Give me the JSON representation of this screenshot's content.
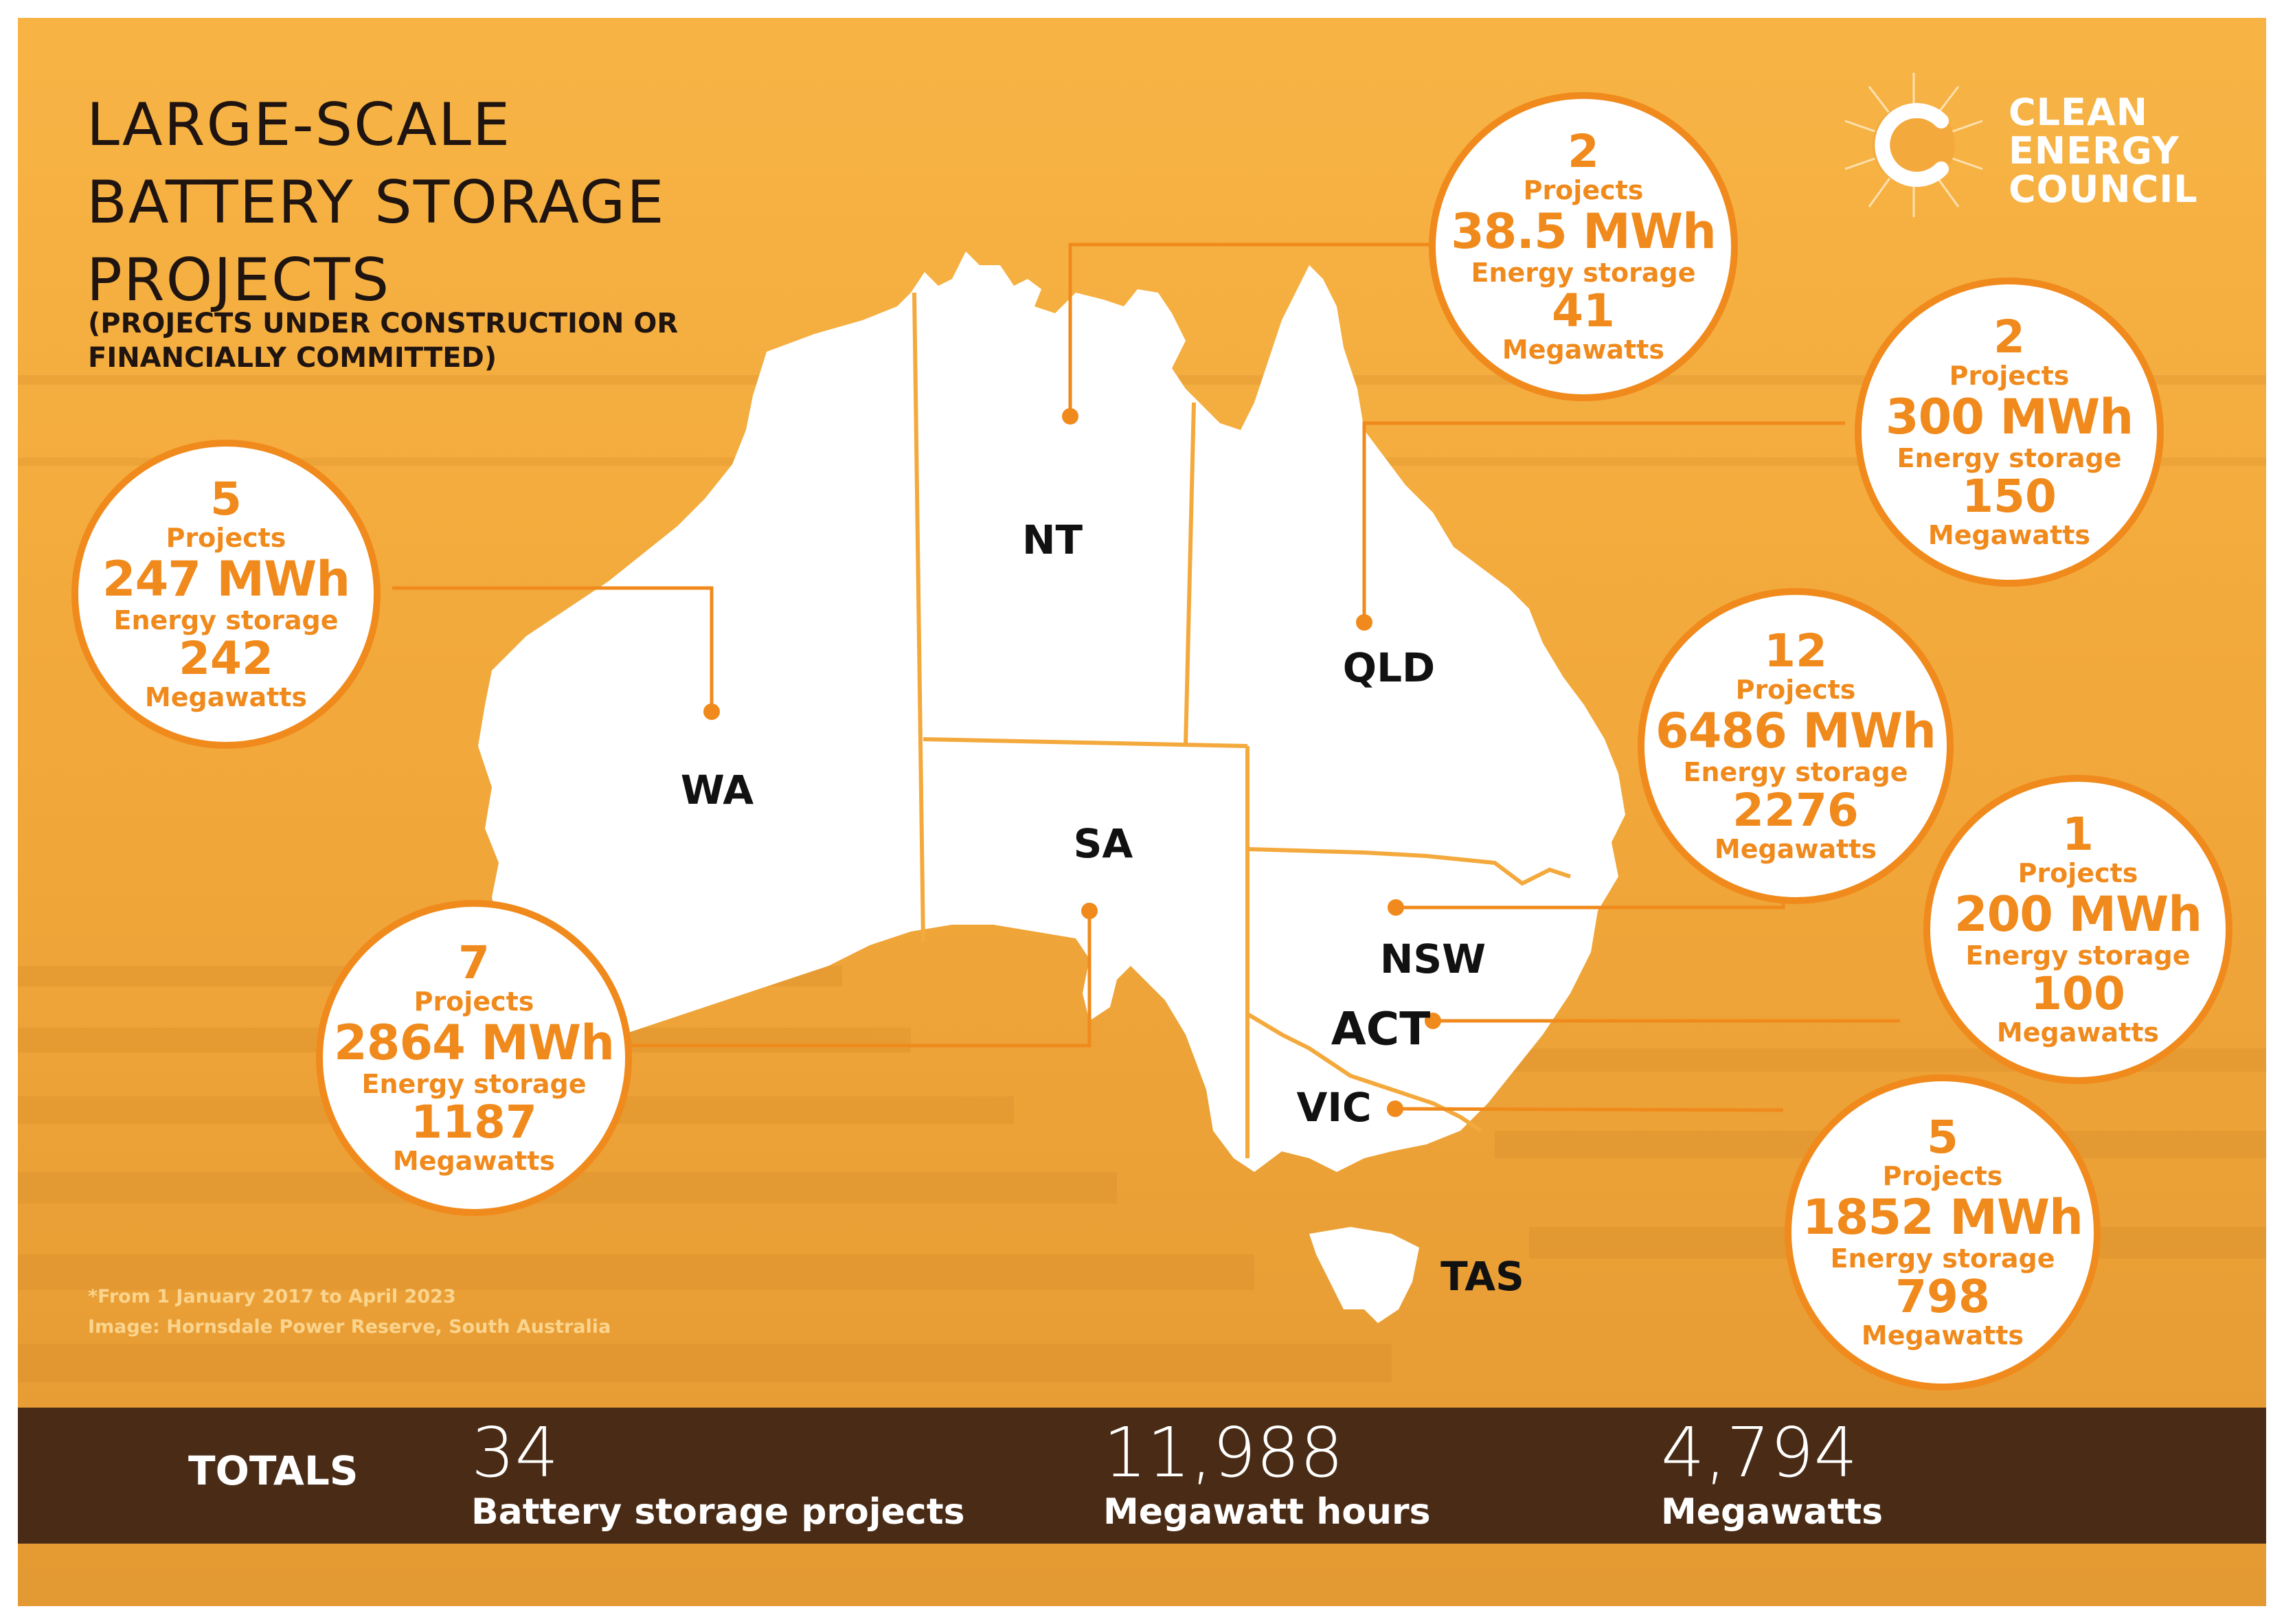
{
  "title_lines": [
    "LARGE-SCALE",
    "BATTERY STORAGE",
    "PROJECTS"
  ],
  "subtitle_lines": [
    "(PROJECTS UNDER CONSTRUCTION OR",
    "FINANCIALLY COMMITTED)"
  ],
  "logo_lines": [
    "CLEAN",
    "ENERGY",
    "COUNCIL"
  ],
  "states": {
    "wa": "WA",
    "nt": "NT",
    "sa": "SA",
    "qld": "QLD",
    "nsw": "NSW",
    "act": "ACT",
    "vic": "VIC",
    "tas": "TAS"
  },
  "bubbles": {
    "wa": {
      "projects": "5",
      "projects_label": "Projects",
      "energy": "247 MWh",
      "energy_label": "Energy storage",
      "power": "242",
      "power_label": "Megawatts"
    },
    "sa": {
      "projects": "7",
      "projects_label": "Projects",
      "energy": "2864 MWh",
      "energy_label": "Energy storage",
      "power": "1187",
      "power_label": "Megawatts"
    },
    "nt": {
      "projects": "2",
      "projects_label": "Projects",
      "energy": "38.5 MWh",
      "energy_label": "Energy storage",
      "power": "41",
      "power_label": "Megawatts"
    },
    "qld": {
      "projects": "2",
      "projects_label": "Projects",
      "energy": "300 MWh",
      "energy_label": "Energy storage",
      "power": "150",
      "power_label": "Megawatts"
    },
    "nsw": {
      "projects": "12",
      "projects_label": "Projects",
      "energy": "6486 MWh",
      "energy_label": "Energy storage",
      "power": "2276",
      "power_label": "Megawatts"
    },
    "act": {
      "projects": "1",
      "projects_label": "Projects",
      "energy": "200 MWh",
      "energy_label": "Energy storage",
      "power": "100",
      "power_label": "Megawatts"
    },
    "vic": {
      "projects": "5",
      "projects_label": "Projects",
      "energy": "1852 MWh",
      "energy_label": "Energy storage",
      "power": "798",
      "power_label": "Megawatts"
    }
  },
  "footnote_lines": [
    "*From 1 January 2017 to April 2023",
    "Image: Hornsdale Power Reserve, South Australia"
  ],
  "totals": {
    "label": "TOTALS",
    "projects": {
      "value": "34",
      "caption": "Battery storage projects"
    },
    "mwh": {
      "value": "11,988",
      "caption": "Megawatt hours"
    },
    "mw": {
      "value": "4,794",
      "caption": "Megawatts"
    }
  },
  "colors": {
    "background": "#f4a93d",
    "accent": "#f08a1c",
    "totals_bar": "#4a2c16"
  }
}
